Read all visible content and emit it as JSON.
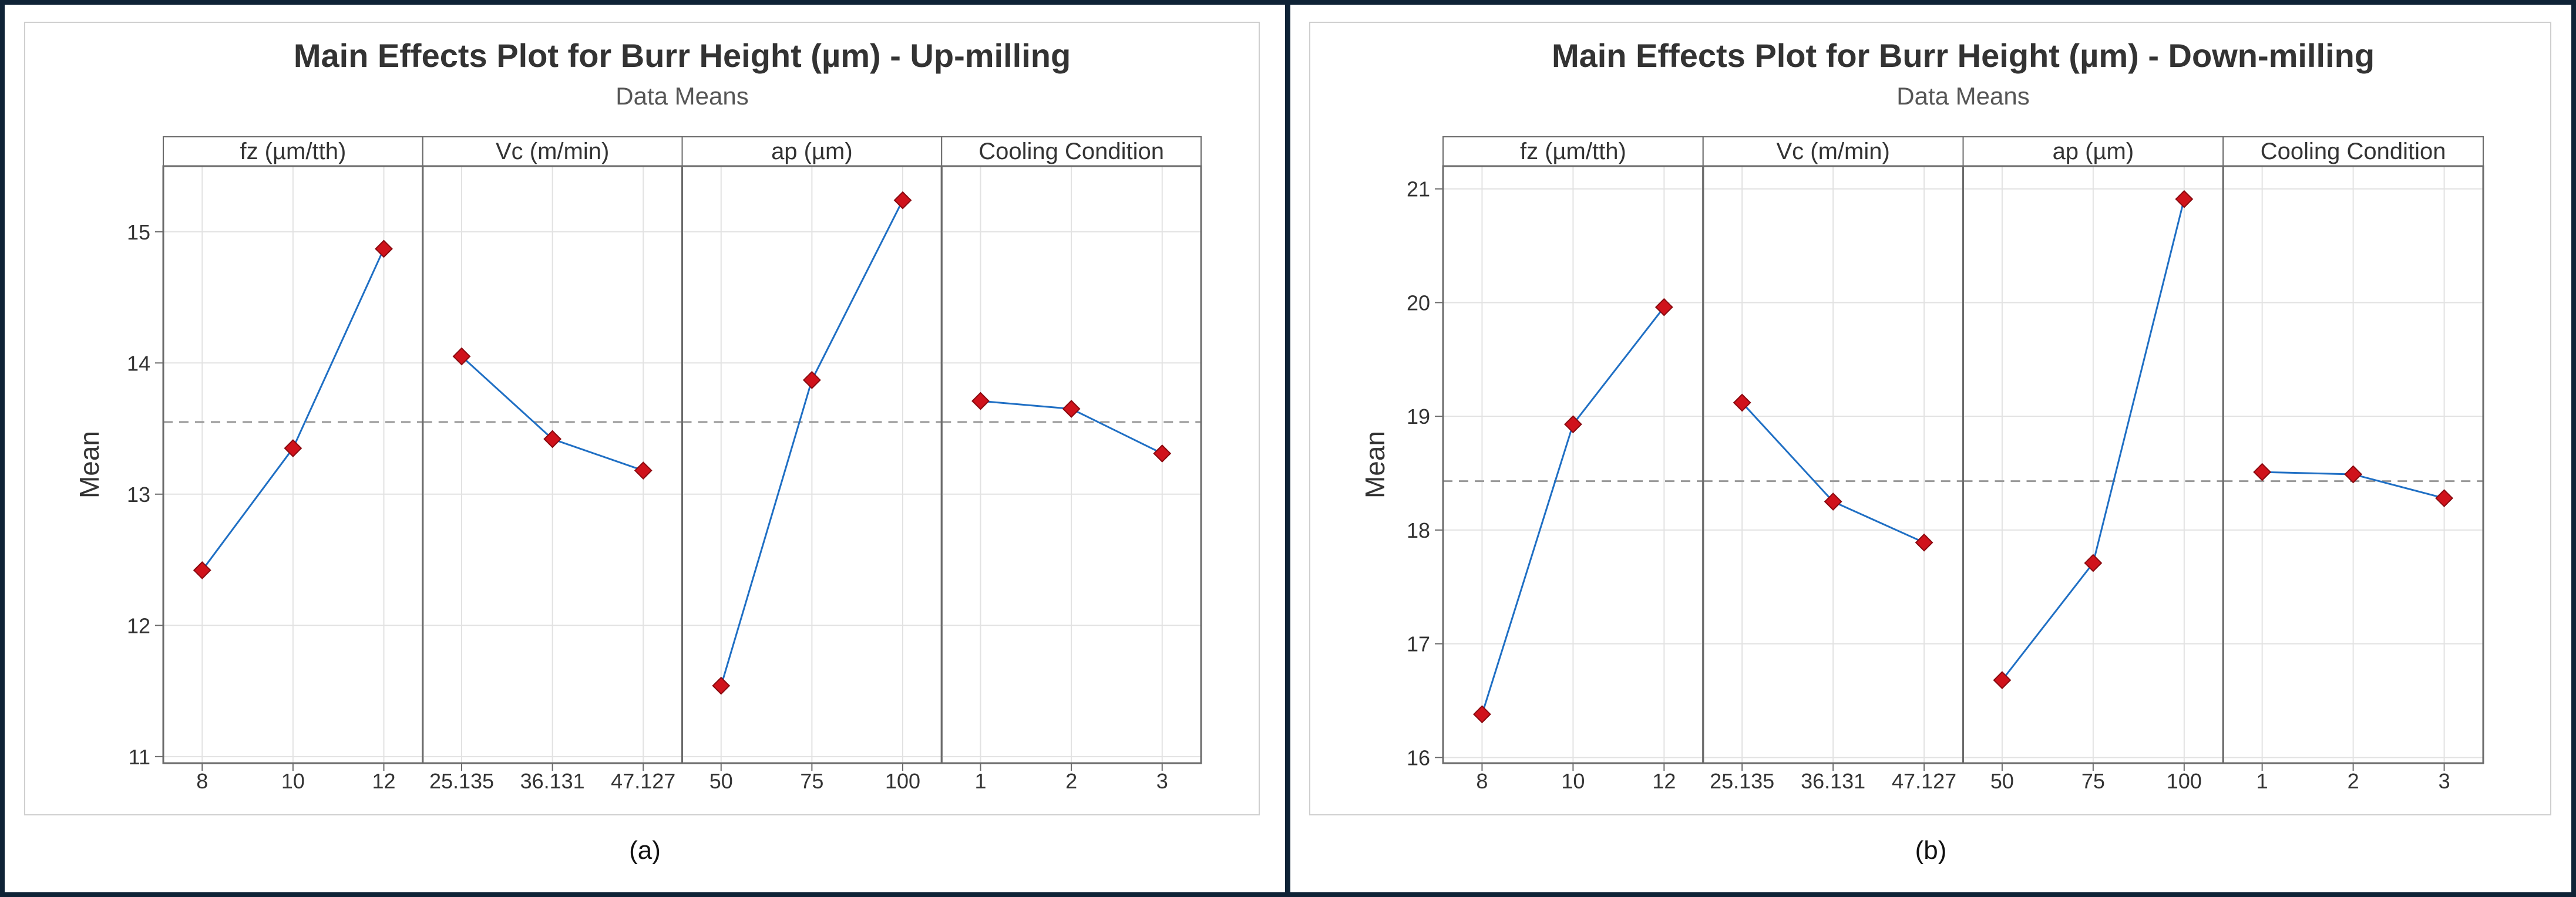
{
  "charts": [
    {
      "caption": "(a)",
      "chart_data": {
        "type": "line",
        "title": "Main Effects Plot for Burr Height (µm) - Up-milling",
        "subtitle": "Data Means",
        "ylabel": "Mean",
        "ylim": [
          10.95,
          15.5
        ],
        "yticks": [
          "11",
          "12",
          "13",
          "14",
          "15"
        ],
        "overall_mean": 13.55,
        "panels": [
          {
            "factor": "fz (µm/tth)",
            "categories": [
              "8",
              "10",
              "12"
            ],
            "values": [
              12.42,
              13.35,
              14.87
            ]
          },
          {
            "factor": "Vc (m/min)",
            "categories": [
              "25.135",
              "36.131",
              "47.127"
            ],
            "values": [
              14.05,
              13.42,
              13.18
            ]
          },
          {
            "factor": "ap (µm)",
            "categories": [
              "50",
              "75",
              "100"
            ],
            "values": [
              11.54,
              13.87,
              15.24
            ]
          },
          {
            "factor": "Cooling Condition",
            "categories": [
              "1",
              "2",
              "3"
            ],
            "values": [
              13.71,
              13.65,
              13.31
            ]
          }
        ]
      }
    },
    {
      "caption": "(b)",
      "chart_data": {
        "type": "line",
        "title": "Main Effects Plot for Burr Height (µm) - Down-milling",
        "subtitle": "Data Means",
        "ylabel": "Mean",
        "ylim": [
          15.95,
          21.2
        ],
        "yticks": [
          "16",
          "17",
          "18",
          "19",
          "20",
          "21"
        ],
        "overall_mean": 18.43,
        "panels": [
          {
            "factor": "fz (µm/tth)",
            "categories": [
              "8",
              "10",
              "12"
            ],
            "values": [
              16.38,
              18.93,
              19.96
            ]
          },
          {
            "factor": "Vc (m/min)",
            "categories": [
              "25.135",
              "36.131",
              "47.127"
            ],
            "values": [
              19.12,
              18.25,
              17.89
            ]
          },
          {
            "factor": "ap (µm)",
            "categories": [
              "50",
              "75",
              "100"
            ],
            "values": [
              16.68,
              17.71,
              20.91
            ]
          },
          {
            "factor": "Cooling Condition",
            "categories": [
              "1",
              "2",
              "3"
            ],
            "values": [
              18.51,
              18.49,
              18.28
            ]
          }
        ]
      }
    }
  ],
  "colors": {
    "line": "#1f6fc4",
    "marker": "#d0121b",
    "marker_edge": "#8a0a10",
    "grid": "#e2e2e2",
    "frame": "#6b6b6b",
    "reference": "#9a9a9a",
    "text": "#333333",
    "border": "#0f2336"
  }
}
